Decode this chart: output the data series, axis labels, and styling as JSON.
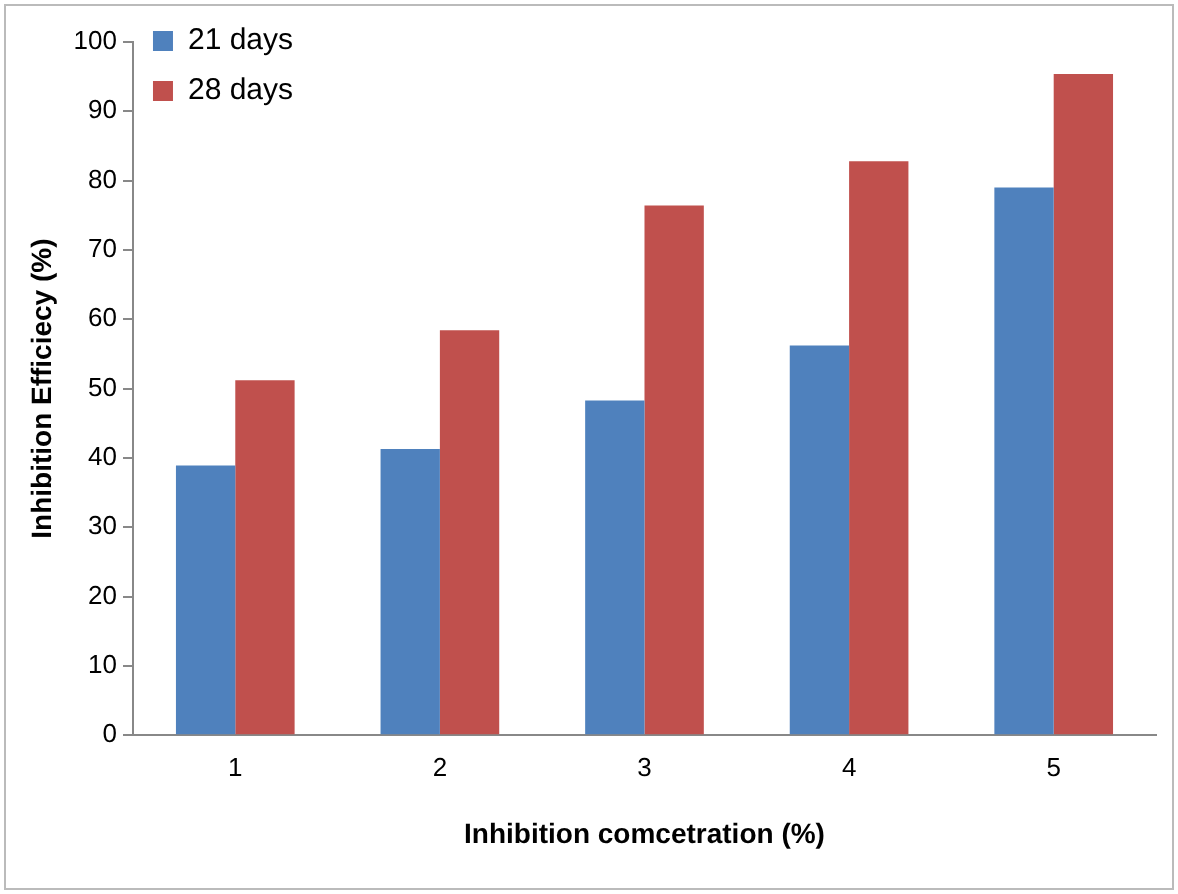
{
  "chart_data": {
    "type": "bar",
    "xlabel": "Inhibition comcetration (%)",
    "ylabel": "Inhibition Efficiecy (%)",
    "categories": [
      "1",
      "2",
      "3",
      "4",
      "5"
    ],
    "series": [
      {
        "name": "21 days",
        "color": "#4f81bd",
        "values": [
          38.9,
          41.3,
          48.3,
          56.2,
          79.0
        ]
      },
      {
        "name": "28 days",
        "color": "#c0504d",
        "values": [
          51.2,
          58.4,
          76.4,
          82.8,
          95.4
        ]
      }
    ],
    "ylim": [
      0,
      100
    ],
    "yticks": [
      0,
      10,
      20,
      30,
      40,
      50,
      60,
      70,
      80,
      90,
      100
    ],
    "grid": false,
    "legend": "top left"
  }
}
